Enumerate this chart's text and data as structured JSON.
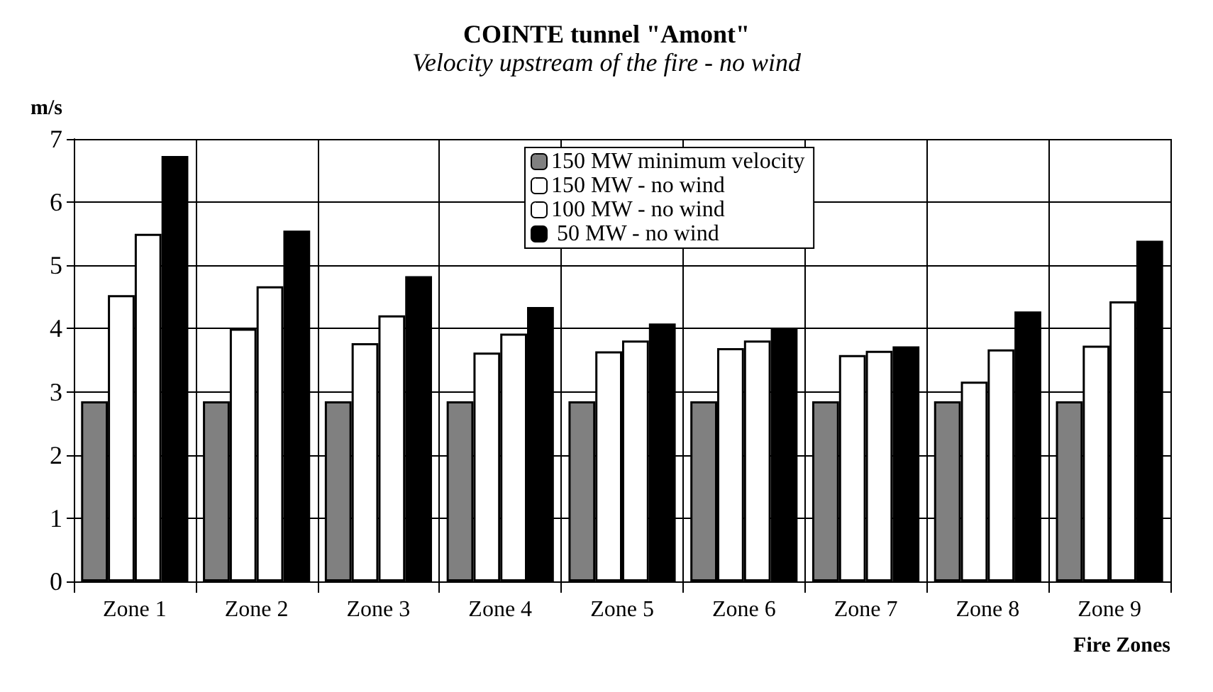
{
  "chart_data": {
    "type": "bar",
    "title": "COINTE tunnel \"Amont\"",
    "subtitle": "Velocity upstream of the fire - no wind",
    "ylabel": "m/s",
    "xlabel": "Fire Zones",
    "categories": [
      "Zone 1",
      "Zone 2",
      "Zone 3",
      "Zone 4",
      "Zone 5",
      "Zone 6",
      "Zone 7",
      "Zone 8",
      "Zone 9"
    ],
    "series": [
      {
        "name": "150 MW minimum velocity",
        "color": "#808080",
        "values": [
          2.85,
          2.85,
          2.85,
          2.85,
          2.85,
          2.85,
          2.85,
          2.85,
          2.85
        ]
      },
      {
        "name": "150 MW - no wind",
        "color": "#ffffff",
        "values": [
          4.53,
          4.0,
          3.77,
          3.62,
          3.64,
          3.69,
          3.58,
          3.16,
          3.73
        ]
      },
      {
        "name": "100 MW - no wind",
        "color": "#ffffff",
        "values": [
          5.5,
          4.67,
          4.21,
          3.92,
          3.81,
          3.81,
          3.65,
          3.67,
          4.43
        ]
      },
      {
        "name": " 50 MW - no wind",
        "color": "#000000",
        "values": [
          6.73,
          5.55,
          4.83,
          4.34,
          4.08,
          4.01,
          3.72,
          4.27,
          5.39
        ]
      }
    ],
    "ylim": [
      0,
      7
    ],
    "yticks": [
      0,
      1,
      2,
      3,
      4,
      5,
      6,
      7
    ],
    "grid": true,
    "legend": "top"
  }
}
